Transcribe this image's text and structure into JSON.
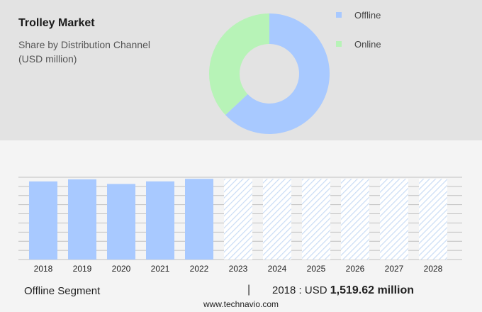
{
  "header": {
    "title": "Trolley Market",
    "subtitle_line1": "Share by Distribution Channel",
    "subtitle_line2": "(USD million)"
  },
  "colors": {
    "offline": "#a8c9ff",
    "online": "#b7f3b7",
    "forecast_hatch": "#c9dcf5",
    "gridline": "#bfbfbf"
  },
  "chart_data": [
    {
      "type": "pie",
      "variant": "donut",
      "legend_position": "top-right",
      "categories": [
        "Offline",
        "Online"
      ],
      "values": [
        63,
        37
      ]
    },
    {
      "type": "bar",
      "categories": [
        "2018",
        "2019",
        "2020",
        "2021",
        "2022",
        "2023",
        "2024",
        "2025",
        "2026",
        "2027",
        "2028"
      ],
      "series": [
        {
          "name": "Offline Segment",
          "values": [
            1519.62,
            1560,
            1470,
            1520,
            1570,
            1570,
            1570,
            1570,
            1570,
            1570,
            1570
          ]
        }
      ],
      "forecast_from": "2023",
      "grid": true,
      "ylim": [
        0,
        1600
      ]
    }
  ],
  "footer": {
    "segment_label": "Offline Segment",
    "separator": "|",
    "year_prefix": "2018 : USD ",
    "value_bold": "1,519.62 million"
  },
  "source": "www.technavio.com"
}
